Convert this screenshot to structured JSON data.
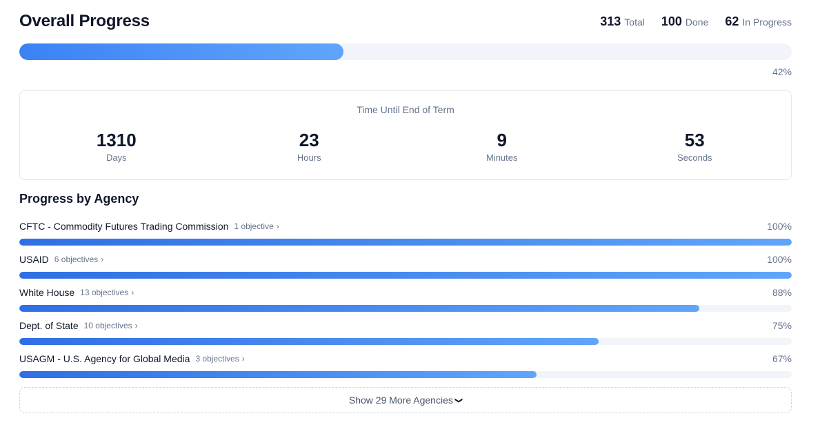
{
  "header": {
    "title": "Overall Progress",
    "stats": [
      {
        "value": "313",
        "label": "Total"
      },
      {
        "value": "100",
        "label": "Done"
      },
      {
        "value": "62",
        "label": "In Progress"
      }
    ]
  },
  "overall": {
    "percent": 42,
    "percent_label": "42%"
  },
  "countdown": {
    "title": "Time Until End of Term",
    "units": [
      {
        "value": "1310",
        "label": "Days"
      },
      {
        "value": "23",
        "label": "Hours"
      },
      {
        "value": "9",
        "label": "Minutes"
      },
      {
        "value": "53",
        "label": "Seconds"
      }
    ]
  },
  "agencies": {
    "title": "Progress by Agency",
    "items": [
      {
        "name": "CFTC - Commodity Futures Trading Commission",
        "objectives": "1 objective",
        "percent": 100,
        "percent_label": "100%"
      },
      {
        "name": "USAID",
        "objectives": "6 objectives",
        "percent": 100,
        "percent_label": "100%"
      },
      {
        "name": "White House",
        "objectives": "13 objectives",
        "percent": 88,
        "percent_label": "88%"
      },
      {
        "name": "Dept. of State",
        "objectives": "10 objectives",
        "percent": 75,
        "percent_label": "75%"
      },
      {
        "name": "USAGM - U.S. Agency for Global Media",
        "objectives": "3 objectives",
        "percent": 67,
        "percent_label": "67%"
      }
    ],
    "show_more_label": "Show 29 More Agencies"
  },
  "icons": {
    "objectives_chevron": "chevron-right-icon",
    "show_more_chevron": "chevron-down-icon"
  },
  "colors": {
    "bar_start": "#3b82f6",
    "bar_end": "#60a5fa",
    "track": "#f1f5f9"
  }
}
